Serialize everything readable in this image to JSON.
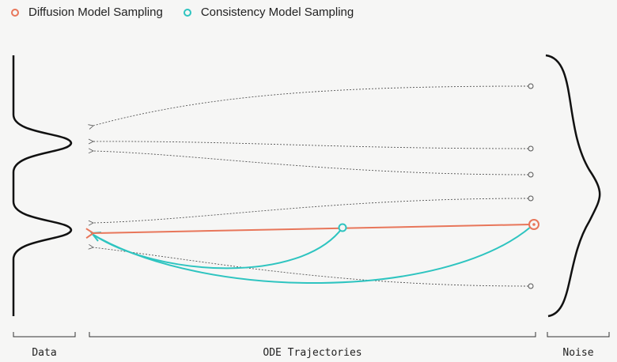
{
  "legend": {
    "diffusion": {
      "label": "Diffusion Model Sampling",
      "color": "#e8765a"
    },
    "consistency": {
      "label": "Consistency Model Sampling",
      "color": "#2ec4c0"
    }
  },
  "axis_labels": {
    "data": "Data",
    "ode": "ODE Trajectories",
    "noise": "Noise"
  }
}
